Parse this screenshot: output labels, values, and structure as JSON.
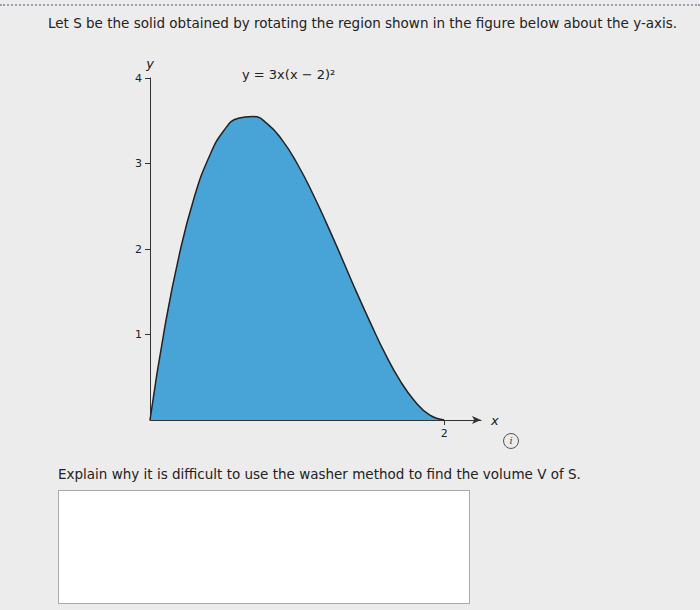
{
  "header": {
    "prompt": "Let S be the solid obtained by rotating the region shown in the figure below about the y-axis."
  },
  "chart_data": {
    "type": "area",
    "curve_label": "y = 3x(x − 2)²",
    "x": [
      0,
      0.1,
      0.2,
      0.3,
      0.4,
      0.5,
      0.6,
      0.7,
      0.8,
      0.9,
      1.0,
      1.1,
      1.2,
      1.3,
      1.4,
      1.5,
      1.6,
      1.7,
      1.8,
      1.9,
      2.0
    ],
    "values": [
      0,
      1.08,
      1.94,
      2.6,
      3.07,
      3.38,
      3.53,
      3.55,
      3.46,
      3.27,
      3.0,
      2.67,
      2.3,
      1.91,
      1.51,
      1.13,
      0.77,
      0.46,
      0.22,
      0.06,
      0
    ],
    "color": "#48a4d6",
    "x_label": "x",
    "y_label": "y",
    "xlim": [
      0,
      2.25
    ],
    "xticks": [
      2
    ],
    "ylim": [
      0,
      4
    ],
    "yticks": [
      1,
      2,
      3,
      4
    ]
  },
  "question": {
    "text": "Explain why it is difficult to use the washer method to find the volume V of S."
  }
}
